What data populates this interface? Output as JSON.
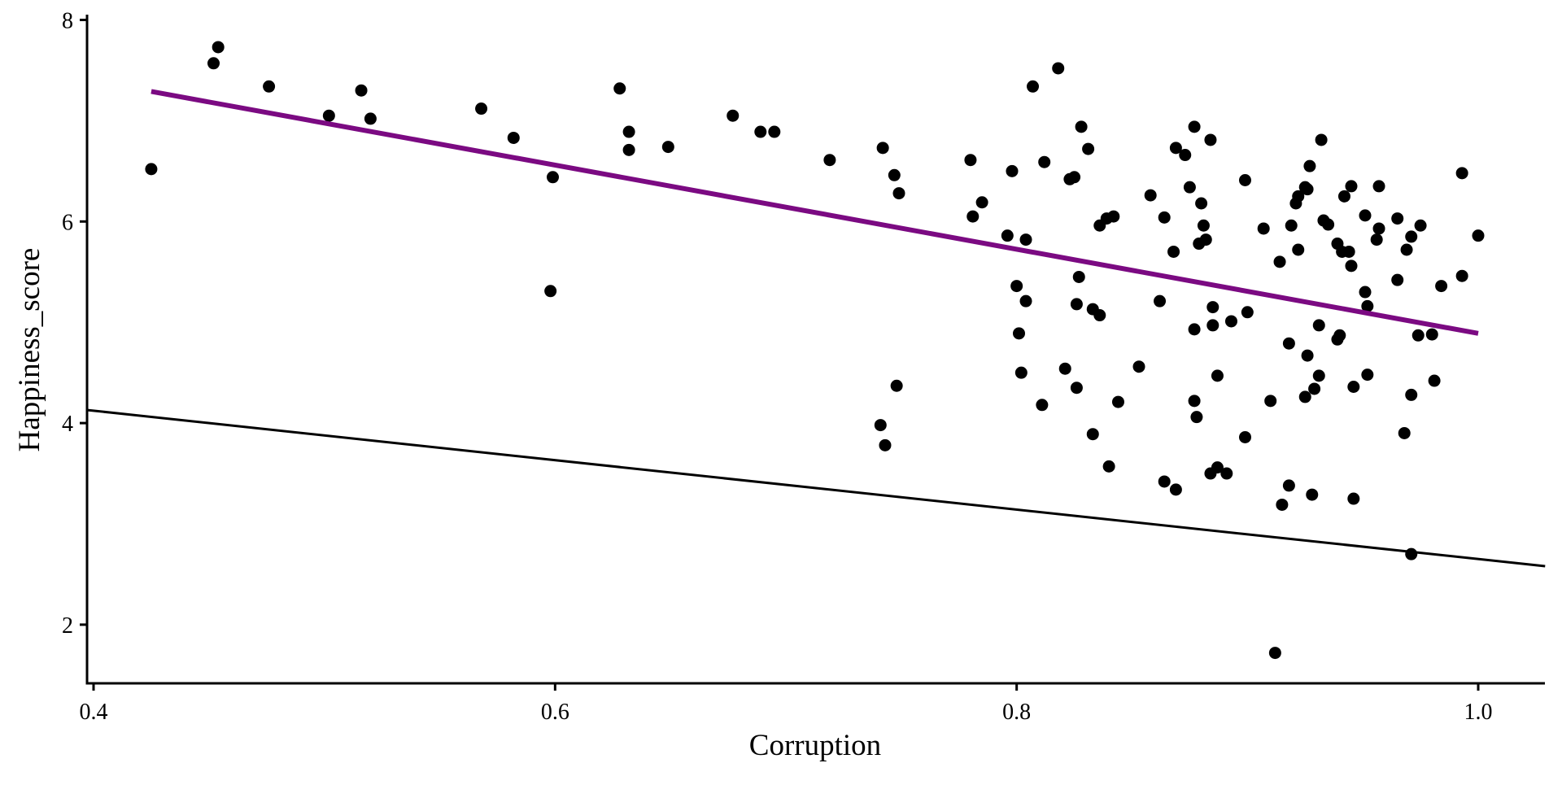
{
  "chart_data": {
    "type": "scatter",
    "title": "",
    "xlabel": "Corruption",
    "ylabel": "Happiness_score",
    "xlim": [
      0.397,
      1.029
    ],
    "ylim": [
      1.43,
      8.05
    ],
    "xticks": [
      0.4,
      0.6,
      0.8,
      1.0
    ],
    "xtick_labels": [
      "0.4",
      "0.6",
      "0.8",
      "1.0"
    ],
    "yticks": [
      2,
      4,
      6,
      8
    ],
    "ytick_labels": [
      "2",
      "4",
      "6",
      "8"
    ],
    "grid": false,
    "legend": "none",
    "colors": {
      "points": "#000000",
      "fit_line": "#7B0A82",
      "reference_line": "#000000"
    },
    "series": [
      {
        "name": "countries",
        "type": "scatter",
        "points": [
          [
            0.425,
            6.52
          ],
          [
            0.452,
            7.57
          ],
          [
            0.454,
            7.73
          ],
          [
            0.476,
            7.34
          ],
          [
            0.502,
            7.05
          ],
          [
            0.516,
            7.3
          ],
          [
            0.52,
            7.02
          ],
          [
            0.568,
            7.12
          ],
          [
            0.582,
            6.83
          ],
          [
            0.599,
            6.44
          ],
          [
            0.598,
            5.31
          ],
          [
            0.628,
            7.32
          ],
          [
            0.632,
            6.89
          ],
          [
            0.632,
            6.71
          ],
          [
            0.649,
            6.74
          ],
          [
            0.677,
            7.05
          ],
          [
            0.689,
            6.89
          ],
          [
            0.695,
            6.89
          ],
          [
            0.719,
            6.61
          ],
          [
            0.742,
            6.73
          ],
          [
            0.747,
            6.46
          ],
          [
            0.749,
            6.28
          ],
          [
            0.748,
            4.37
          ],
          [
            0.741,
            3.98
          ],
          [
            0.743,
            3.78
          ],
          [
            0.78,
            6.61
          ],
          [
            0.781,
            6.05
          ],
          [
            0.785,
            6.19
          ],
          [
            0.796,
            5.86
          ],
          [
            0.798,
            6.5
          ],
          [
            0.804,
            5.82
          ],
          [
            0.8,
            5.36
          ],
          [
            0.804,
            5.21
          ],
          [
            0.801,
            4.89
          ],
          [
            0.802,
            4.5
          ],
          [
            0.807,
            7.34
          ],
          [
            0.818,
            7.52
          ],
          [
            0.812,
            6.59
          ],
          [
            0.811,
            4.18
          ],
          [
            0.821,
            4.54
          ],
          [
            0.823,
            6.42
          ],
          [
            0.825,
            6.44
          ],
          [
            0.828,
            6.94
          ],
          [
            0.831,
            6.72
          ],
          [
            0.827,
            5.45
          ],
          [
            0.826,
            5.18
          ],
          [
            0.826,
            4.35
          ],
          [
            0.833,
            5.13
          ],
          [
            0.836,
            5.07
          ],
          [
            0.836,
            5.96
          ],
          [
            0.839,
            6.03
          ],
          [
            0.842,
            6.05
          ],
          [
            0.833,
            3.89
          ],
          [
            0.844,
            4.21
          ],
          [
            0.84,
            3.57
          ],
          [
            0.853,
            4.56
          ],
          [
            0.858,
            6.26
          ],
          [
            0.862,
            5.21
          ],
          [
            0.864,
            6.04
          ],
          [
            0.864,
            3.42
          ],
          [
            0.869,
            3.34
          ],
          [
            0.868,
            5.7
          ],
          [
            0.869,
            6.73
          ],
          [
            0.873,
            6.66
          ],
          [
            0.875,
            6.34
          ],
          [
            0.877,
            6.94
          ],
          [
            0.877,
            4.93
          ],
          [
            0.877,
            4.22
          ],
          [
            0.878,
            4.06
          ],
          [
            0.879,
            5.78
          ],
          [
            0.88,
            6.18
          ],
          [
            0.881,
            5.96
          ],
          [
            0.882,
            5.82
          ],
          [
            0.884,
            6.81
          ],
          [
            0.885,
            5.15
          ],
          [
            0.885,
            4.97
          ],
          [
            0.887,
            4.47
          ],
          [
            0.887,
            3.56
          ],
          [
            0.884,
            3.5
          ],
          [
            0.891,
            3.5
          ],
          [
            0.893,
            5.01
          ],
          [
            0.899,
            6.41
          ],
          [
            0.9,
            5.1
          ],
          [
            0.899,
            3.86
          ],
          [
            0.907,
            5.93
          ],
          [
            0.91,
            4.22
          ],
          [
            0.912,
            1.72
          ],
          [
            0.914,
            5.6
          ],
          [
            0.915,
            3.19
          ],
          [
            0.918,
            3.38
          ],
          [
            0.918,
            4.79
          ],
          [
            0.919,
            5.96
          ],
          [
            0.921,
            6.18
          ],
          [
            0.922,
            6.25
          ],
          [
            0.922,
            5.72
          ],
          [
            0.925,
            6.34
          ],
          [
            0.926,
            6.32
          ],
          [
            0.927,
            6.55
          ],
          [
            0.926,
            4.67
          ],
          [
            0.925,
            4.26
          ],
          [
            0.928,
            3.29
          ],
          [
            0.929,
            4.34
          ],
          [
            0.931,
            4.47
          ],
          [
            0.931,
            4.97
          ],
          [
            0.932,
            6.81
          ],
          [
            0.933,
            6.01
          ],
          [
            0.935,
            5.97
          ],
          [
            0.939,
            5.78
          ],
          [
            0.939,
            4.83
          ],
          [
            0.94,
            4.87
          ],
          [
            0.941,
            5.7
          ],
          [
            0.942,
            6.25
          ],
          [
            0.944,
            5.7
          ],
          [
            0.945,
            5.56
          ],
          [
            0.946,
            4.36
          ],
          [
            0.946,
            3.25
          ],
          [
            0.945,
            6.35
          ],
          [
            0.951,
            6.06
          ],
          [
            0.951,
            5.3
          ],
          [
            0.952,
            5.16
          ],
          [
            0.952,
            4.48
          ],
          [
            0.956,
            5.82
          ],
          [
            0.957,
            5.93
          ],
          [
            0.957,
            6.35
          ],
          [
            0.965,
            6.03
          ],
          [
            0.965,
            5.42
          ],
          [
            0.968,
            3.9
          ],
          [
            0.969,
            5.72
          ],
          [
            0.971,
            5.85
          ],
          [
            0.971,
            2.7
          ],
          [
            0.971,
            4.28
          ],
          [
            0.974,
            4.87
          ],
          [
            0.975,
            5.96
          ],
          [
            0.98,
            4.88
          ],
          [
            0.981,
            4.42
          ],
          [
            0.984,
            5.36
          ],
          [
            0.993,
            6.48
          ],
          [
            0.993,
            5.46
          ],
          [
            1.0,
            5.86
          ]
        ]
      },
      {
        "name": "fit",
        "type": "line",
        "points": [
          [
            0.425,
            7.29
          ],
          [
            1.0,
            4.89
          ]
        ]
      },
      {
        "name": "reference",
        "type": "line",
        "points": [
          [
            0.397,
            4.13
          ],
          [
            1.029,
            2.58
          ]
        ]
      }
    ]
  }
}
